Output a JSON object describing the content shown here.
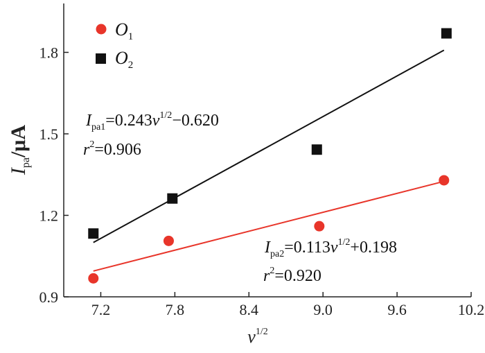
{
  "chart_data": {
    "type": "scatter",
    "xlabel": {
      "main": "v",
      "sup": "1/2"
    },
    "ylabel": {
      "main": "I",
      "sub": "pa",
      "unit": "/μA"
    },
    "xlim": [
      6.9,
      10.2
    ],
    "ylim": [
      0.9,
      1.98
    ],
    "xticks": [
      7.2,
      7.8,
      8.4,
      9.0,
      9.6,
      10.2
    ],
    "xtick_labels": [
      "7.2",
      "7.8",
      "8.4",
      "9.0",
      "9.6",
      "10.2"
    ],
    "yticks": [
      0.9,
      1.2,
      1.5,
      1.8
    ],
    "ytick_labels": [
      "0.9",
      "1.2",
      "1.5",
      "1.8"
    ],
    "grid": false,
    "legend_position": "top-left",
    "series": [
      {
        "name": "O1",
        "name_main": "O",
        "name_sub": "1",
        "marker": "circle",
        "color": "#e8352a",
        "x": [
          7.14,
          7.75,
          8.97,
          9.98
        ],
        "y": [
          0.968,
          1.106,
          1.16,
          1.329
        ],
        "fit": {
          "x": [
            7.14,
            9.98
          ],
          "y": [
            0.995,
            1.325
          ]
        },
        "equation": {
          "lhs": "I",
          "lhs_sub": "pa2",
          "rhs_pre": "=0.113",
          "var": "v",
          "var_sup": "1/2",
          "rhs_post": "+0.198"
        },
        "r2": {
          "var": "r",
          "sup": "2",
          "value": "=0.920"
        }
      },
      {
        "name": "O2",
        "name_main": "O",
        "name_sub": "2",
        "marker": "square",
        "color": "#111111",
        "x": [
          7.14,
          7.78,
          8.95,
          10.0
        ],
        "y": [
          1.133,
          1.262,
          1.442,
          1.87
        ],
        "fit": {
          "x": [
            7.14,
            9.98
          ],
          "y": [
            1.1,
            1.808
          ]
        },
        "equation": {
          "lhs": "I",
          "lhs_sub": "pa1",
          "rhs_pre": "=0.243",
          "var": "v",
          "var_sup": "1/2",
          "rhs_post": "−0.620"
        },
        "r2": {
          "var": "r",
          "sup": "2",
          "value": "=0.906"
        }
      }
    ]
  }
}
